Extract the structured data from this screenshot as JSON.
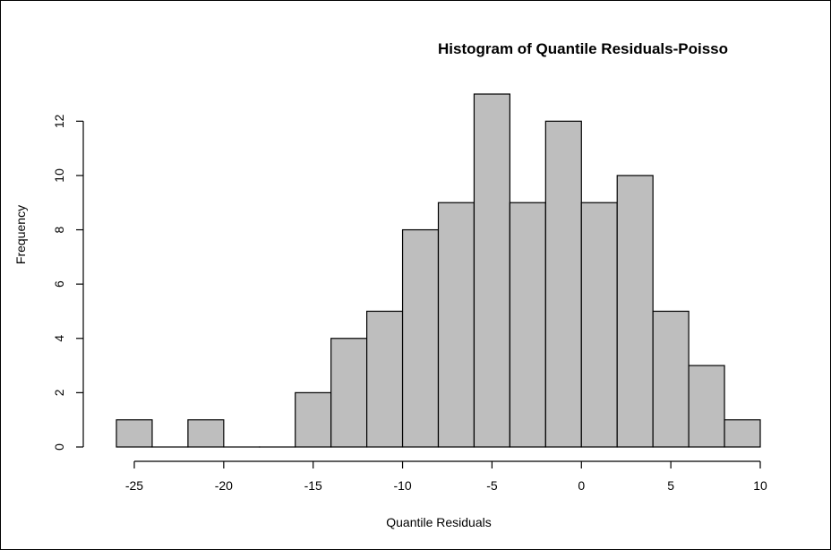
{
  "chart_data": {
    "type": "bar",
    "title": "Histogram of Quantile Residuals-Poisso",
    "xlabel": "Quantile Residuals",
    "ylabel": "Frequency",
    "bin_edges": [
      -26,
      -24,
      -22,
      -20,
      -18,
      -16,
      -14,
      -12,
      -10,
      -8,
      -6,
      -4,
      -2,
      0,
      2,
      4,
      6,
      8,
      10
    ],
    "values": [
      1,
      0,
      1,
      0,
      0,
      2,
      4,
      5,
      8,
      9,
      13,
      9,
      12,
      9,
      10,
      5,
      3,
      1
    ],
    "xlim": [
      -26,
      10
    ],
    "ylim": [
      0,
      13
    ],
    "x_ticks": [
      -25,
      -20,
      -15,
      -10,
      -5,
      0,
      5,
      10
    ],
    "y_ticks": [
      0,
      2,
      4,
      6,
      8,
      10,
      12
    ],
    "grid": false,
    "bar_color": "#bebebe",
    "edge_color": "#000000"
  }
}
